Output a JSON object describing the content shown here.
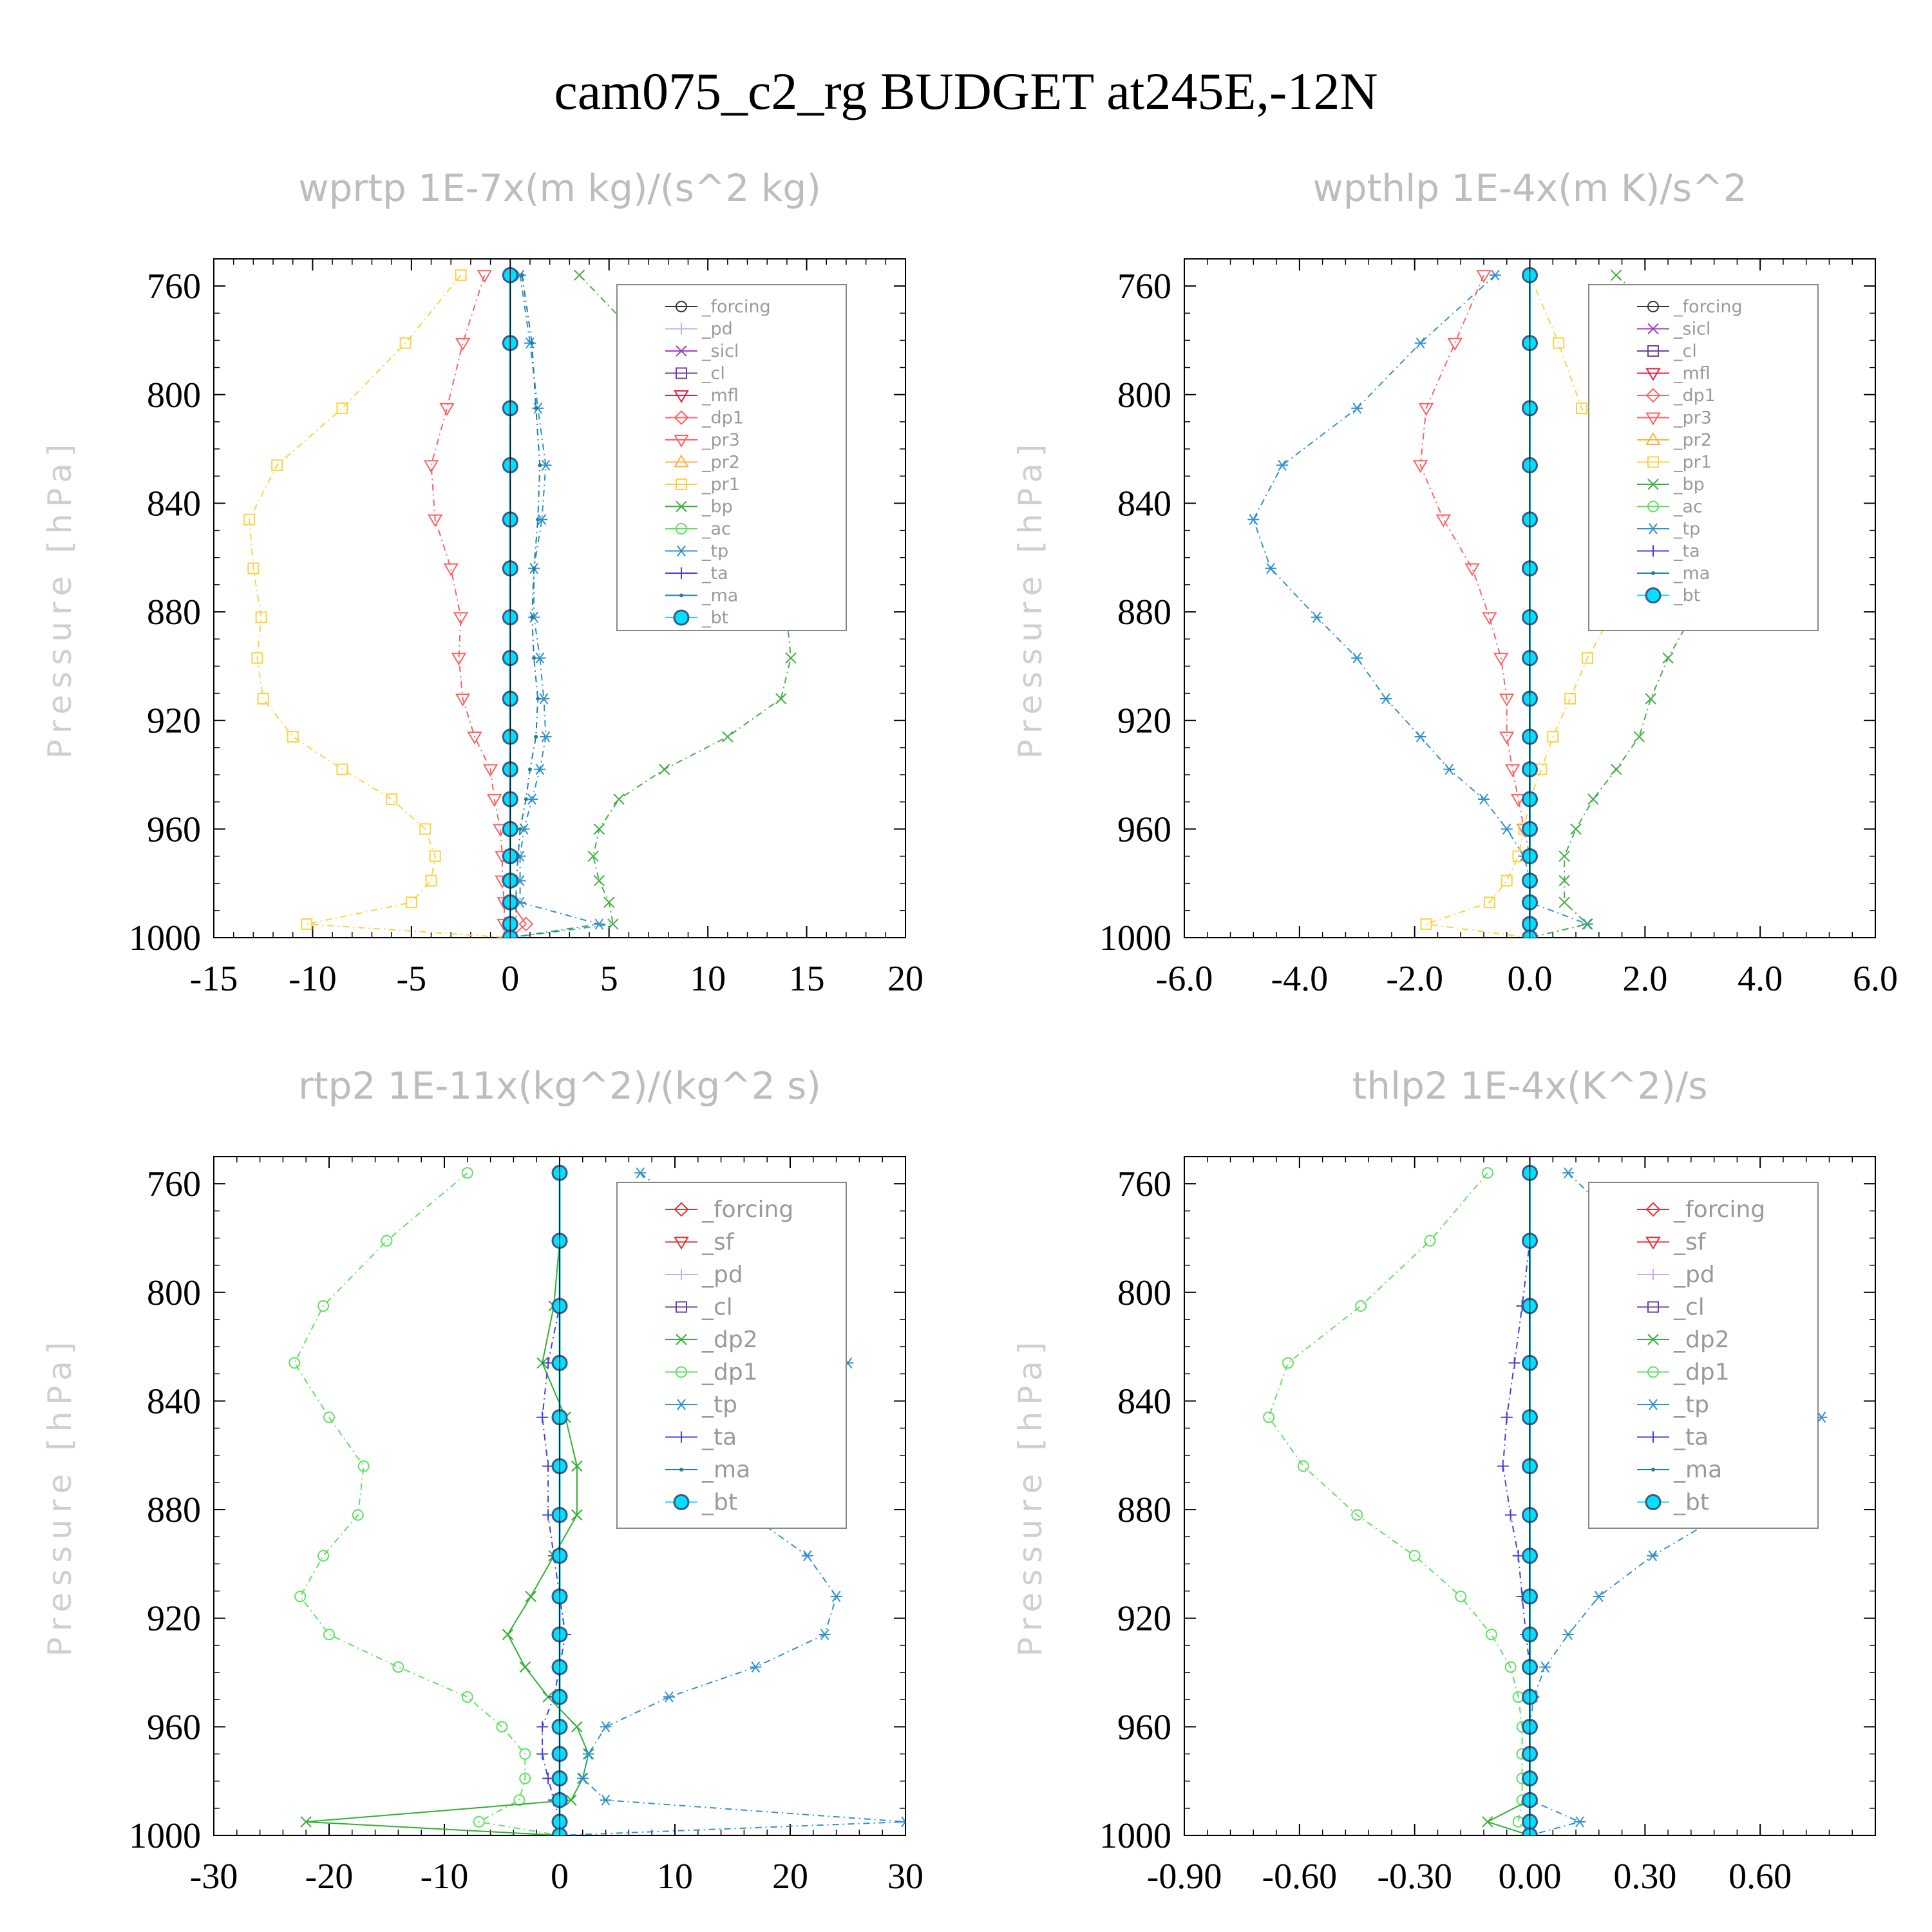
{
  "title": "cam075_c2_rg  BUDGET at245E,-12N",
  "colors": {
    "forcing": "#333333",
    "pd": "#c8a8ff",
    "sicl": "#a040c0",
    "cl": "#7040a0",
    "mfl": "#e02040",
    "dp1": "#ff6060",
    "pr3": "#ff6060",
    "pr2": "#ffb040",
    "pr1": "#ffd040",
    "bp": "#40b040",
    "ac": "#60e060",
    "tp": "#3090d0",
    "ta": "#4040e0",
    "ma": "#2080a0",
    "bt": "#00e0ff",
    "forcing_b": "#e03030",
    "sf": "#e03030",
    "pd_b": "#ffa040",
    "cl_b": "#ffd000",
    "dp2": "#30b030",
    "dp1_b": "#60e060"
  },
  "chart_data": [
    {
      "type": "line",
      "title": "wprtp  1E-7x(m kg)/(s^2 kg)",
      "ylabel": "Pressure [hPa]",
      "xlim": [
        -15,
        20
      ],
      "ylim": [
        1000,
        750
      ],
      "xticks": [
        "-15",
        "-10",
        "-5",
        "0",
        "5",
        "10",
        "15",
        "20"
      ],
      "xtick_values": [
        -15,
        -10,
        -5,
        0,
        5,
        10,
        15,
        20
      ],
      "yticks": [
        "760",
        "800",
        "840",
        "880",
        "920",
        "960",
        "1000"
      ],
      "ytick_values": [
        760,
        800,
        840,
        880,
        920,
        960,
        1000
      ],
      "levels": [
        756,
        781,
        805,
        826,
        846,
        864,
        882,
        897,
        912,
        926,
        938,
        949,
        960,
        970,
        979,
        987,
        995,
        1000
      ],
      "legend": [
        "_forcing",
        "_pd",
        "_sicl",
        "_cl",
        "_mfl",
        "_dp1",
        "_pr3",
        "_pr2",
        "_pr1",
        "_bp",
        "_ac",
        "_tp",
        "_ta",
        "_ma",
        "_bt"
      ],
      "series": [
        {
          "name": "_pr1",
          "color_key": "pr1",
          "marker": "square",
          "dash": "10,6,2,6",
          "values": [
            -2.5,
            -5.3,
            -8.5,
            -11.8,
            -13.2,
            -13.0,
            -12.6,
            -12.8,
            -12.5,
            -11.0,
            -8.5,
            -6.0,
            -4.3,
            -3.8,
            -4.0,
            -5.0,
            -10.3,
            0
          ]
        },
        {
          "name": "_pr2",
          "color_key": "pr2",
          "marker": "triangle",
          "dash": "10,6,2,6",
          "values": [
            0,
            0,
            0,
            0,
            0,
            0,
            0,
            0,
            0,
            0,
            0,
            0,
            0,
            0,
            0,
            0,
            0,
            0
          ]
        },
        {
          "name": "_pr3",
          "color_key": "pr3",
          "marker": "tri-down",
          "dash": "10,6,2,6",
          "values": [
            -1.3,
            -2.4,
            -3.2,
            -4.0,
            -3.8,
            -3.0,
            -2.5,
            -2.6,
            -2.4,
            -1.8,
            -1.0,
            -0.8,
            -0.5,
            -0.4,
            -0.4,
            -0.3,
            -0.3,
            0
          ]
        },
        {
          "name": "_dp1",
          "color_key": "dp1",
          "marker": "diamond",
          "dash": "none",
          "values": [
            0,
            0,
            0,
            0,
            0,
            0,
            0,
            0,
            0,
            0,
            0,
            0,
            0,
            0,
            0,
            0,
            0.8,
            0
          ]
        },
        {
          "name": "_bp",
          "color_key": "bp",
          "marker": "x",
          "dash": "10,6,2,6",
          "values": [
            3.5,
            6.8,
            10.0,
            14.0,
            15.7,
            14.9,
            14.0,
            14.2,
            13.7,
            11.0,
            7.8,
            5.5,
            4.5,
            4.2,
            4.5,
            5.0,
            5.2,
            0
          ]
        },
        {
          "name": "_tp",
          "color_key": "tp",
          "marker": "star",
          "dash": "10,6,2,6",
          "values": [
            0.5,
            1.0,
            1.4,
            1.8,
            1.6,
            1.2,
            1.2,
            1.5,
            1.7,
            1.8,
            1.5,
            1.1,
            0.7,
            0.5,
            0.5,
            0.5,
            4.5,
            0
          ]
        },
        {
          "name": "_ma",
          "color_key": "ma",
          "marker": "dot",
          "dash": "10,6,2,6",
          "values": [
            0.6,
            1.1,
            1.3,
            1.5,
            1.4,
            1.2,
            1.1,
            1.2,
            1.4,
            1.3,
            1.0,
            0.8,
            0.5,
            0.4,
            0.3,
            0.3,
            0.3,
            0
          ]
        },
        {
          "name": "_forcing",
          "color_key": "forcing",
          "marker": "circle",
          "dash": "none",
          "values": [
            0,
            0,
            0,
            0,
            0,
            0,
            0,
            0,
            0,
            0,
            0,
            0,
            0,
            0,
            0,
            0,
            0,
            0
          ]
        },
        {
          "name": "_bt",
          "color_key": "bt",
          "marker": "bigdot",
          "dash": "none",
          "values": [
            0,
            0,
            0,
            0,
            0,
            0,
            0,
            0,
            0,
            0,
            0,
            0,
            0,
            0,
            0,
            0,
            0,
            0
          ]
        }
      ]
    },
    {
      "type": "line",
      "title": "wpthlp  1E-4x(m K)/s^2",
      "ylabel": "Pressure [hPa]",
      "xlim": [
        -6.0,
        6.0
      ],
      "ylim": [
        1000,
        750
      ],
      "xticks": [
        "-6.0",
        "-4.0",
        "-2.0",
        "0.0",
        "2.0",
        "4.0",
        "6.0"
      ],
      "xtick_values": [
        -6,
        -4,
        -2,
        0,
        2,
        4,
        6
      ],
      "yticks": [
        "760",
        "800",
        "840",
        "880",
        "920",
        "960",
        "1000"
      ],
      "ytick_values": [
        760,
        800,
        840,
        880,
        920,
        960,
        1000
      ],
      "levels": [
        756,
        781,
        805,
        826,
        846,
        864,
        882,
        897,
        912,
        926,
        938,
        949,
        960,
        970,
        979,
        987,
        995,
        1000
      ],
      "legend": [
        "_forcing",
        "_sicl",
        "_cl",
        "_mfl",
        "_dp1",
        "_pr3",
        "_pr2",
        "_pr1",
        "_bp",
        "_ac",
        "_tp",
        "_ta",
        "_ma",
        "_bt"
      ],
      "series": [
        {
          "name": "_tp",
          "color_key": "tp",
          "marker": "star",
          "dash": "10,6,2,6",
          "values": [
            -0.6,
            -1.9,
            -3.0,
            -4.3,
            -4.8,
            -4.5,
            -3.7,
            -3.0,
            -2.5,
            -1.9,
            -1.4,
            -0.8,
            -0.4,
            -0.1,
            0,
            0,
            1.0,
            0
          ]
        },
        {
          "name": "_pr3",
          "color_key": "pr3",
          "marker": "tri-down",
          "dash": "10,6,2,6",
          "values": [
            -0.8,
            -1.3,
            -1.8,
            -1.9,
            -1.5,
            -1.0,
            -0.7,
            -0.5,
            -0.4,
            -0.4,
            -0.3,
            -0.2,
            -0.1,
            0,
            0,
            0,
            0,
            0
          ]
        },
        {
          "name": "_pr1",
          "color_key": "pr1",
          "marker": "square",
          "dash": "10,6,2,6",
          "values": [
            0,
            0.5,
            0.9,
            1.6,
            1.9,
            1.8,
            1.4,
            1.0,
            0.7,
            0.4,
            0.2,
            0,
            -0.1,
            -0.2,
            -0.4,
            -0.7,
            -1.8,
            0
          ]
        },
        {
          "name": "_bp",
          "color_key": "bp",
          "marker": "x",
          "dash": "10,6,2,6",
          "values": [
            1.5,
            2.8,
            4.0,
            4.6,
            4.2,
            3.3,
            2.8,
            2.4,
            2.1,
            1.9,
            1.5,
            1.1,
            0.8,
            0.6,
            0.6,
            0.6,
            1.0,
            0
          ]
        },
        {
          "name": "_ma",
          "color_key": "ma",
          "marker": "dot",
          "dash": "10,6,2,6",
          "values": [
            0,
            0,
            0,
            0,
            0,
            0,
            0,
            0,
            0,
            0,
            0,
            0,
            0,
            0,
            0,
            0,
            0,
            0
          ]
        },
        {
          "name": "_bt",
          "color_key": "bt",
          "marker": "bigdot",
          "dash": "none",
          "values": [
            0,
            0,
            0,
            0,
            0,
            0,
            0,
            0,
            0,
            0,
            0,
            0,
            0,
            0,
            0,
            0,
            0,
            0
          ]
        }
      ]
    },
    {
      "type": "line",
      "title": "rtp2  1E-11x(kg^2)/(kg^2 s)",
      "ylabel": "Pressure [hPa]",
      "xlim": [
        -30,
        30
      ],
      "ylim": [
        1000,
        750
      ],
      "xticks": [
        "-30",
        "-20",
        "-10",
        "0",
        "10",
        "20",
        "30"
      ],
      "xtick_values": [
        -30,
        -20,
        -10,
        0,
        10,
        20,
        30
      ],
      "yticks": [
        "760",
        "800",
        "840",
        "880",
        "920",
        "960",
        "1000"
      ],
      "ytick_values": [
        760,
        800,
        840,
        880,
        920,
        960,
        1000
      ],
      "levels": [
        756,
        781,
        805,
        826,
        846,
        864,
        882,
        897,
        912,
        926,
        938,
        949,
        960,
        970,
        979,
        987,
        995,
        1000
      ],
      "legend": [
        "_forcing",
        "_sf",
        "_pd",
        "_cl",
        "_dp2",
        "_dp1",
        "_tp",
        "_ta",
        "_ma",
        "_bt"
      ],
      "series": [
        {
          "name": "_dp1",
          "color_key": "dp1_b",
          "marker": "circle",
          "dash": "10,6,2,6",
          "values": [
            -8.0,
            -15.0,
            -20.5,
            -23.0,
            -20.0,
            -17.0,
            -17.5,
            -20.5,
            -22.5,
            -20.0,
            -14.0,
            -8.0,
            -5.0,
            -3.0,
            -3.0,
            -3.5,
            -7.0,
            0
          ]
        },
        {
          "name": "_dp2",
          "color_key": "dp2",
          "marker": "x",
          "dash": "none",
          "values": [
            0,
            0,
            -0.5,
            -1.5,
            0.5,
            1.5,
            1.5,
            -0.5,
            -2.5,
            -4.5,
            -3.0,
            -1.0,
            1.5,
            2.5,
            2.0,
            1.0,
            -22.0,
            0
          ]
        },
        {
          "name": "_tp",
          "color_key": "tp",
          "marker": "star",
          "dash": "10,6,2,6",
          "values": [
            7.0,
            14.5,
            21.5,
            25.0,
            21.0,
            16.5,
            16.5,
            21.5,
            24.0,
            23.0,
            17.0,
            9.5,
            4.0,
            2.5,
            2.0,
            4.0,
            30.0,
            0
          ]
        },
        {
          "name": "_ta",
          "color_key": "ta",
          "marker": "plus",
          "dash": "10,6,2,6",
          "values": [
            0,
            0,
            0,
            -1.0,
            -1.5,
            -1.0,
            -1.0,
            -0.5,
            0,
            0.5,
            0,
            -0.5,
            -1.5,
            -1.5,
            -1.0,
            -0.5,
            0,
            0
          ]
        },
        {
          "name": "_forcing",
          "color_key": "forcing_b",
          "marker": "diamond",
          "dash": "none",
          "values": [
            0,
            0,
            0,
            0,
            0,
            0,
            0,
            0,
            0,
            0,
            0,
            0,
            0,
            0,
            0,
            0,
            0,
            0
          ]
        },
        {
          "name": "_bt",
          "color_key": "bt",
          "marker": "bigdot",
          "dash": "none",
          "values": [
            0,
            0,
            0,
            0,
            0,
            0,
            0,
            0,
            0,
            0,
            0,
            0,
            0,
            0,
            0,
            0,
            0,
            0
          ]
        }
      ]
    },
    {
      "type": "line",
      "title": "thlp2  1E-4x(K^2)/s",
      "ylabel": "Pressure [hPa]",
      "xlim": [
        -0.9,
        0.9
      ],
      "ylim": [
        1000,
        750
      ],
      "xticks": [
        "-0.90",
        "-0.60",
        "-0.30",
        "0.00",
        "0.30",
        "0.60"
      ],
      "xtick_values": [
        -0.9,
        -0.6,
        -0.3,
        0,
        0.3,
        0.6
      ],
      "yticks": [
        "760",
        "800",
        "840",
        "880",
        "920",
        "960",
        "1000"
      ],
      "ytick_values": [
        760,
        800,
        840,
        880,
        920,
        960,
        1000
      ],
      "levels": [
        756,
        781,
        805,
        826,
        846,
        864,
        882,
        897,
        912,
        926,
        938,
        949,
        960,
        970,
        979,
        987,
        995,
        1000
      ],
      "legend": [
        "_forcing",
        "_sf",
        "_pd",
        "_cl",
        "_dp2",
        "_dp1",
        "_tp",
        "_ta",
        "_ma",
        "_bt"
      ],
      "series": [
        {
          "name": "_dp1",
          "color_key": "dp1_b",
          "marker": "circle",
          "dash": "10,6,2,6",
          "values": [
            -0.11,
            -0.26,
            -0.44,
            -0.63,
            -0.68,
            -0.59,
            -0.45,
            -0.3,
            -0.18,
            -0.1,
            -0.05,
            -0.03,
            -0.02,
            -0.02,
            -0.02,
            -0.02,
            -0.03,
            0
          ]
        },
        {
          "name": "_tp",
          "color_key": "tp",
          "marker": "star",
          "dash": "10,6,2,6",
          "values": [
            0.1,
            0.28,
            0.46,
            0.67,
            0.76,
            0.67,
            0.5,
            0.32,
            0.18,
            0.1,
            0.04,
            0.01,
            0,
            0,
            0,
            0,
            0.13,
            0
          ]
        },
        {
          "name": "_dp2",
          "color_key": "dp2",
          "marker": "x",
          "dash": "none",
          "values": [
            0,
            0,
            0,
            0,
            0,
            0,
            0,
            0,
            0,
            0,
            0,
            0,
            0,
            0,
            0,
            0,
            -0.11,
            0
          ]
        },
        {
          "name": "_ta",
          "color_key": "ta",
          "marker": "plus",
          "dash": "10,6,2,6",
          "values": [
            0,
            0,
            -0.02,
            -0.04,
            -0.06,
            -0.07,
            -0.05,
            -0.03,
            -0.02,
            -0.01,
            0,
            0,
            0,
            0,
            0,
            0,
            0,
            0
          ]
        },
        {
          "name": "_forcing",
          "color_key": "forcing_b",
          "marker": "diamond",
          "dash": "none",
          "values": [
            0,
            0,
            0,
            0,
            0,
            0,
            0,
            0,
            0,
            0,
            0,
            0,
            0,
            0,
            0,
            0,
            0,
            0
          ]
        },
        {
          "name": "_bt",
          "color_key": "bt",
          "marker": "bigdot",
          "dash": "none",
          "values": [
            0,
            0,
            0,
            0,
            0,
            0,
            0,
            0,
            0,
            0,
            0,
            0,
            0,
            0,
            0,
            0,
            0,
            0
          ]
        }
      ]
    }
  ]
}
